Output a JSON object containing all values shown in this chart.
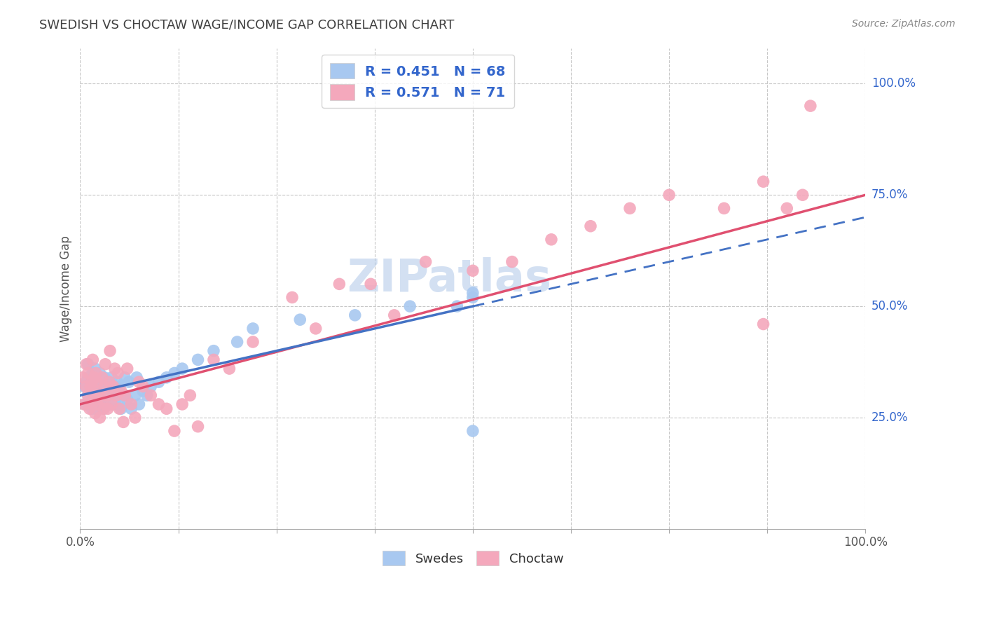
{
  "title": "SWEDISH VS CHOCTAW WAGE/INCOME GAP CORRELATION CHART",
  "source": "Source: ZipAtlas.com",
  "ylabel": "Wage/Income Gap",
  "watermark": "ZIPatlas",
  "swede_R": 0.451,
  "swede_N": 68,
  "choctaw_R": 0.571,
  "choctaw_N": 71,
  "swede_color": "#A8C8F0",
  "choctaw_color": "#F4A8BC",
  "swede_line_color": "#4472C4",
  "choctaw_line_color": "#E05070",
  "ytick_labels": [
    "25.0%",
    "50.0%",
    "75.0%",
    "100.0%"
  ],
  "ytick_values": [
    0.25,
    0.5,
    0.75,
    1.0
  ],
  "background_color": "#ffffff",
  "grid_color": "#c8c8c8",
  "title_color": "#404040",
  "legend_label_color": "#3366CC",
  "swede_scatter_x": [
    0.005,
    0.007,
    0.008,
    0.01,
    0.01,
    0.01,
    0.012,
    0.013,
    0.015,
    0.015,
    0.016,
    0.017,
    0.018,
    0.019,
    0.02,
    0.02,
    0.02,
    0.022,
    0.022,
    0.023,
    0.025,
    0.025,
    0.027,
    0.028,
    0.03,
    0.03,
    0.031,
    0.032,
    0.033,
    0.035,
    0.036,
    0.037,
    0.038,
    0.04,
    0.04,
    0.042,
    0.043,
    0.045,
    0.047,
    0.05,
    0.05,
    0.052,
    0.055,
    0.057,
    0.06,
    0.062,
    0.065,
    0.07,
    0.072,
    0.075,
    0.08,
    0.085,
    0.09,
    0.1,
    0.11,
    0.12,
    0.13,
    0.15,
    0.17,
    0.2,
    0.22,
    0.28,
    0.35,
    0.42,
    0.48,
    0.5,
    0.5,
    0.5
  ],
  "swede_scatter_y": [
    0.32,
    0.28,
    0.33,
    0.3,
    0.34,
    0.37,
    0.29,
    0.33,
    0.27,
    0.31,
    0.35,
    0.29,
    0.32,
    0.36,
    0.27,
    0.31,
    0.34,
    0.3,
    0.33,
    0.28,
    0.31,
    0.35,
    0.29,
    0.32,
    0.27,
    0.31,
    0.34,
    0.28,
    0.32,
    0.29,
    0.33,
    0.28,
    0.31,
    0.3,
    0.34,
    0.28,
    0.32,
    0.29,
    0.33,
    0.28,
    0.32,
    0.27,
    0.3,
    0.34,
    0.29,
    0.33,
    0.27,
    0.3,
    0.34,
    0.28,
    0.31,
    0.3,
    0.32,
    0.33,
    0.34,
    0.35,
    0.36,
    0.38,
    0.4,
    0.42,
    0.45,
    0.47,
    0.48,
    0.5,
    0.5,
    0.52,
    0.53,
    0.22
  ],
  "choctaw_scatter_x": [
    0.003,
    0.005,
    0.007,
    0.008,
    0.01,
    0.01,
    0.012,
    0.013,
    0.015,
    0.015,
    0.016,
    0.017,
    0.018,
    0.019,
    0.02,
    0.02,
    0.022,
    0.022,
    0.024,
    0.025,
    0.026,
    0.028,
    0.03,
    0.031,
    0.032,
    0.034,
    0.035,
    0.037,
    0.038,
    0.04,
    0.042,
    0.044,
    0.046,
    0.048,
    0.05,
    0.052,
    0.055,
    0.057,
    0.06,
    0.065,
    0.07,
    0.075,
    0.08,
    0.09,
    0.1,
    0.11,
    0.12,
    0.13,
    0.14,
    0.15,
    0.17,
    0.19,
    0.22,
    0.27,
    0.3,
    0.33,
    0.37,
    0.4,
    0.44,
    0.5,
    0.55,
    0.6,
    0.65,
    0.7,
    0.75,
    0.82,
    0.87,
    0.9,
    0.92,
    0.93,
    0.87
  ],
  "choctaw_scatter_y": [
    0.34,
    0.28,
    0.32,
    0.37,
    0.3,
    0.35,
    0.27,
    0.32,
    0.28,
    0.33,
    0.38,
    0.29,
    0.34,
    0.26,
    0.31,
    0.35,
    0.28,
    0.33,
    0.3,
    0.25,
    0.29,
    0.34,
    0.27,
    0.32,
    0.37,
    0.3,
    0.27,
    0.33,
    0.4,
    0.28,
    0.32,
    0.36,
    0.3,
    0.35,
    0.27,
    0.31,
    0.24,
    0.3,
    0.36,
    0.28,
    0.25,
    0.33,
    0.32,
    0.3,
    0.28,
    0.27,
    0.22,
    0.28,
    0.3,
    0.23,
    0.38,
    0.36,
    0.42,
    0.52,
    0.45,
    0.55,
    0.55,
    0.48,
    0.6,
    0.58,
    0.6,
    0.65,
    0.68,
    0.72,
    0.75,
    0.72,
    0.78,
    0.72,
    0.75,
    0.95,
    0.46
  ]
}
